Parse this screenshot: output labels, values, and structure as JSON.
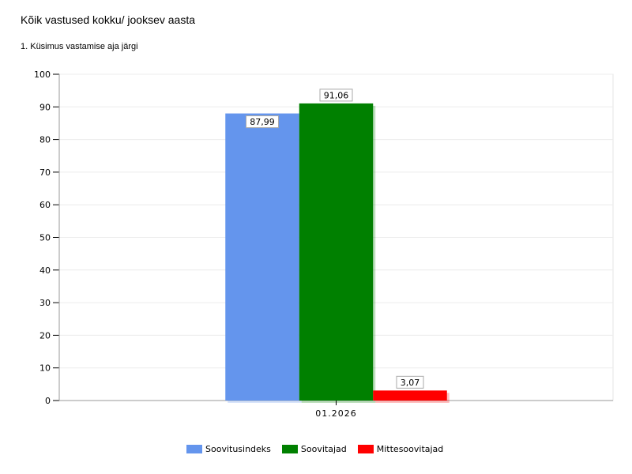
{
  "header": {
    "title": "Kõik vastused kokku/ jooksev aasta",
    "subtitle": "1. Küsimus vastamise aja järgi"
  },
  "chart_data": {
    "type": "bar",
    "categories": [
      "01.2026"
    ],
    "series": [
      {
        "name": "Soovitusindeks",
        "values": [
          87.99
        ],
        "labels": [
          "87,99"
        ],
        "color": "#6495ED"
      },
      {
        "name": "Soovitajad",
        "values": [
          91.06
        ],
        "labels": [
          "91,06"
        ],
        "color": "#008000"
      },
      {
        "name": "Mittesoovitajad",
        "values": [
          3.07
        ],
        "labels": [
          "3,07"
        ],
        "color": "#FF0000"
      }
    ],
    "ylim": [
      0,
      100
    ],
    "yticks": [
      0,
      10,
      20,
      30,
      40,
      50,
      60,
      70,
      80,
      90,
      100
    ],
    "grid": true,
    "legend": "bottom-center",
    "xlabel": "",
    "ylabel": ""
  }
}
